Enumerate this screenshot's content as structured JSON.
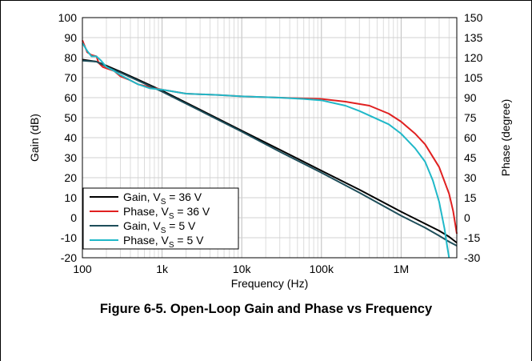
{
  "caption": "Figure 6-5. Open-Loop Gain and Phase vs Frequency",
  "chart_data": {
    "type": "line",
    "xlabel": "Frequency (Hz)",
    "ylabel": "Gain (dB)",
    "y2label": "Phase (degree)",
    "xscale": "log",
    "xlim": [
      100,
      5000000
    ],
    "ylim": [
      -20,
      100
    ],
    "y2lim": [
      -30,
      150
    ],
    "grid": true,
    "legend_position": "bottom-left",
    "x_ticks": [
      100,
      1000,
      10000,
      100000,
      1000000
    ],
    "x_tick_labels": [
      "100",
      "1k",
      "10k",
      "100k",
      "1M"
    ],
    "y_ticks": [
      -20,
      -10,
      0,
      10,
      20,
      30,
      40,
      50,
      60,
      70,
      80,
      90,
      100
    ],
    "y_tick_labels": [
      "-20",
      "-10",
      "0",
      "10",
      "20",
      "30",
      "40",
      "50",
      "60",
      "70",
      "80",
      "90",
      "100"
    ],
    "y2_ticks": [
      -30,
      -15,
      0,
      15,
      30,
      45,
      60,
      75,
      90,
      105,
      120,
      135,
      150
    ],
    "y2_tick_labels": [
      "-30",
      "-15",
      "0",
      "15",
      "30",
      "45",
      "60",
      "75",
      "90",
      "105",
      "120",
      "135",
      "150"
    ],
    "series": [
      {
        "name_main": "Gain, V",
        "name_sub": "S",
        "name_rest": " = 36 V",
        "axis": "left",
        "color": "#000000",
        "points": [
          [
            100,
            79
          ],
          [
            150,
            78
          ],
          [
            200,
            76
          ],
          [
            300,
            73
          ],
          [
            500,
            69
          ],
          [
            1000,
            63.5
          ],
          [
            3000,
            54
          ],
          [
            10000,
            43.5
          ],
          [
            30000,
            34
          ],
          [
            100000,
            23.5
          ],
          [
            300000,
            14
          ],
          [
            1000000,
            3
          ],
          [
            2000000,
            -3
          ],
          [
            3000000,
            -6.5
          ],
          [
            4000000,
            -9.5
          ],
          [
            5000000,
            -12.5
          ]
        ]
      },
      {
        "name_main": "Phase, V",
        "name_sub": "S",
        "name_rest": " = 36 V",
        "axis": "right",
        "color": "#e02020",
        "points": [
          [
            100,
            133
          ],
          [
            115,
            124
          ],
          [
            130,
            122
          ],
          [
            150,
            121
          ],
          [
            160,
            116
          ],
          [
            180,
            113
          ],
          [
            200,
            112
          ],
          [
            250,
            110
          ],
          [
            300,
            106
          ],
          [
            400,
            103
          ],
          [
            500,
            100
          ],
          [
            700,
            98
          ],
          [
            1000,
            96
          ],
          [
            2000,
            93
          ],
          [
            5000,
            92
          ],
          [
            10000,
            91
          ],
          [
            30000,
            90
          ],
          [
            100000,
            89
          ],
          [
            200000,
            87
          ],
          [
            400000,
            84
          ],
          [
            700000,
            78
          ],
          [
            1000000,
            72
          ],
          [
            1500000,
            63
          ],
          [
            2000000,
            55
          ],
          [
            3000000,
            38
          ],
          [
            4000000,
            18
          ],
          [
            4500000,
            5
          ],
          [
            5000000,
            -12
          ]
        ]
      },
      {
        "name_main": "Gain, V",
        "name_sub": "S",
        "name_rest": " = 5 V",
        "axis": "left",
        "color": "#1e4e5a",
        "points": [
          [
            100,
            78.5
          ],
          [
            150,
            78
          ],
          [
            200,
            75.5
          ],
          [
            300,
            72.5
          ],
          [
            500,
            68.5
          ],
          [
            1000,
            63
          ],
          [
            3000,
            53.5
          ],
          [
            10000,
            43
          ],
          [
            30000,
            33
          ],
          [
            100000,
            22.5
          ],
          [
            300000,
            12.5
          ],
          [
            1000000,
            1
          ],
          [
            2000000,
            -5
          ],
          [
            3000000,
            -9
          ],
          [
            4000000,
            -12
          ],
          [
            5000000,
            -14
          ]
        ]
      },
      {
        "name_main": "Phase, V",
        "name_sub": "S",
        "name_rest": " = 5 V",
        "axis": "right",
        "color": "#20b8c8",
        "points": [
          [
            100,
            131
          ],
          [
            115,
            125
          ],
          [
            130,
            121
          ],
          [
            150,
            121
          ],
          [
            170,
            118
          ],
          [
            200,
            113
          ],
          [
            250,
            110
          ],
          [
            300,
            107
          ],
          [
            400,
            103
          ],
          [
            500,
            100
          ],
          [
            700,
            97
          ],
          [
            1000,
            96
          ],
          [
            2000,
            93
          ],
          [
            5000,
            92
          ],
          [
            10000,
            91
          ],
          [
            30000,
            90
          ],
          [
            60000,
            89
          ],
          [
            100000,
            88
          ],
          [
            200000,
            84
          ],
          [
            300000,
            80
          ],
          [
            500000,
            74
          ],
          [
            700000,
            70
          ],
          [
            1000000,
            63
          ],
          [
            1500000,
            52
          ],
          [
            2000000,
            42
          ],
          [
            2500000,
            28
          ],
          [
            3000000,
            12
          ],
          [
            3500000,
            -8
          ],
          [
            3800000,
            -22
          ],
          [
            4000000,
            -30
          ]
        ]
      }
    ]
  }
}
